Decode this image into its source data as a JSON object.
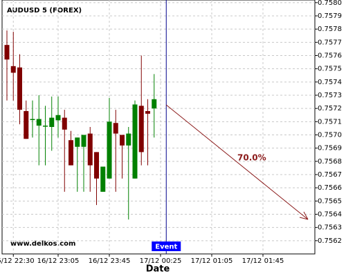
{
  "chart_data": {
    "type": "candlestick",
    "title": "AUDUSD 5 (FOREX)",
    "watermark": "www.delkos.com",
    "event_label": "Event",
    "annotation": "70.0%",
    "xlabel": "Date",
    "categories": [
      null,
      "16/12 22:30",
      null,
      null,
      null,
      null,
      null,
      null,
      "16/12 23:05",
      null,
      null,
      null,
      null,
      null,
      null,
      null,
      "16/12 23:45",
      null,
      null,
      null,
      null,
      null,
      null,
      null,
      "17/12 00:25",
      null,
      null,
      null,
      null,
      null,
      null,
      null,
      "17/12 01:05",
      null,
      null,
      null,
      null,
      null,
      null,
      null,
      "17/12 01:45",
      null,
      null,
      null,
      null,
      null,
      null,
      null,
      null
    ],
    "open": [
      0.75768,
      0.75752,
      0.75751,
      0.75718,
      0.75712,
      0.75707,
      0.75707,
      0.75706,
      0.75711,
      0.75713,
      0.75696,
      0.75691,
      0.75691,
      0.75701,
      0.75687,
      0.75657,
      0.75667,
      0.75709,
      0.757,
      0.75692,
      0.75667,
      0.75722,
      0.75718,
      0.7572,
      null,
      null,
      null,
      null,
      null,
      null,
      null,
      null,
      null,
      null,
      null,
      null,
      null,
      null,
      null,
      null,
      null,
      null,
      null,
      null,
      null,
      null,
      null,
      null,
      null
    ],
    "high": [
      0.75779,
      0.75778,
      0.75761,
      0.75726,
      0.75726,
      0.7573,
      0.75722,
      0.75729,
      0.75729,
      0.75719,
      0.75703,
      0.75698,
      0.757,
      0.75706,
      0.75687,
      0.75676,
      0.75728,
      0.75719,
      0.757,
      0.75706,
      0.75726,
      0.7576,
      0.75727,
      0.75746,
      null,
      null,
      null,
      null,
      null,
      null,
      null,
      null,
      null,
      null,
      null,
      null,
      null,
      null,
      null,
      null,
      null,
      null,
      null,
      null,
      null,
      null,
      null,
      null,
      null
    ],
    "low": [
      0.75726,
      0.75726,
      0.75708,
      0.75697,
      0.75698,
      0.75677,
      0.75677,
      0.75688,
      0.75698,
      0.75657,
      0.75677,
      0.75657,
      0.75657,
      0.75657,
      0.75647,
      0.75657,
      0.75667,
      0.75657,
      0.75667,
      0.75636,
      0.75667,
      0.75677,
      0.75677,
      0.75698,
      null,
      null,
      null,
      null,
      null,
      null,
      null,
      null,
      null,
      null,
      null,
      null,
      null,
      null,
      null,
      null,
      null,
      null,
      null,
      null,
      null,
      null,
      null,
      null,
      null
    ],
    "close": [
      0.75757,
      0.75747,
      0.75719,
      0.75697,
      0.75712,
      0.75712,
      0.75707,
      0.75713,
      0.75715,
      0.75704,
      0.75677,
      0.75698,
      0.757,
      0.75677,
      0.75667,
      0.75676,
      0.7571,
      0.75701,
      0.75692,
      0.75701,
      0.75723,
      0.75687,
      0.75716,
      0.75727,
      null,
      null,
      null,
      null,
      null,
      null,
      null,
      null,
      null,
      null,
      null,
      null,
      null,
      null,
      null,
      null,
      null,
      null,
      null,
      null,
      null,
      null,
      null,
      null,
      null
    ],
    "up_color": "#008000",
    "down_color": "#800000",
    "grid": true,
    "ylim": [
      0.7561,
      0.75802
    ],
    "yticks": [
      0.7562,
      0.7563,
      0.7564,
      0.7565,
      0.7566,
      0.7567,
      0.7568,
      0.7569,
      {
        "value": 0.757,
        "label": "0.7570"
      },
      0.7571,
      0.7572,
      0.7573,
      0.7574,
      0.7575,
      0.7576,
      0.7577,
      0.7578,
      0.7579,
      {
        "value": 0.758,
        "label": "0.7580"
      }
    ]
  }
}
